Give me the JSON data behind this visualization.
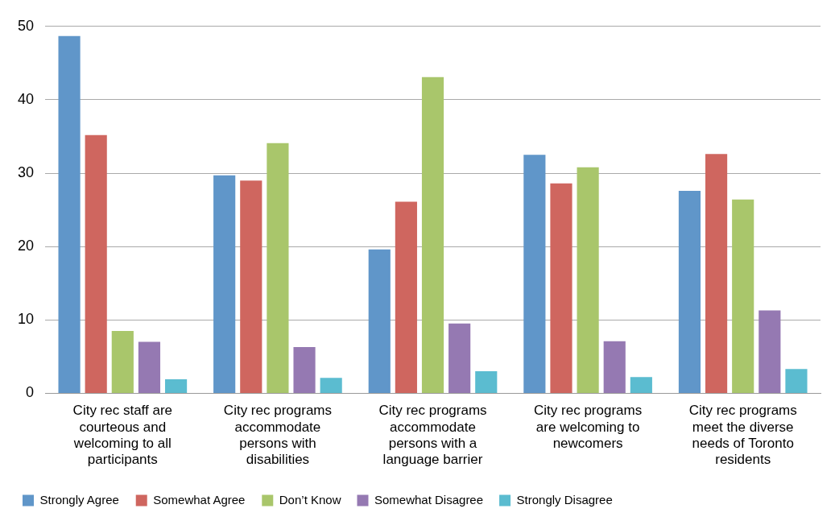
{
  "chart_data": {
    "type": "bar",
    "categories": [
      "City rec staff are courteous and welcoming to all participants",
      "City rec programs accommodate persons with disabilities",
      "City rec programs accommodate persons with a language barrier",
      "City rec programs are welcoming to newcomers",
      "City rec programs meet the diverse needs of Toronto residents"
    ],
    "series": [
      {
        "name": "Strongly Agree",
        "color": "#6096c9",
        "values": [
          48.7,
          29.7,
          19.6,
          32.5,
          27.6
        ]
      },
      {
        "name": "Somewhat Agree",
        "color": "#cf665f",
        "values": [
          35.2,
          29.0,
          26.1,
          28.6,
          32.6
        ]
      },
      {
        "name": "Don’t Know",
        "color": "#a9c66b",
        "values": [
          8.5,
          34.1,
          43.1,
          30.8,
          26.4
        ]
      },
      {
        "name": "Somewhat Disagree",
        "color": "#9579b2",
        "values": [
          7.0,
          6.3,
          9.5,
          7.1,
          11.3
        ]
      },
      {
        "name": "Strongly Disagree",
        "color": "#5bbcd0",
        "values": [
          1.9,
          2.1,
          3.0,
          2.2,
          3.3
        ]
      }
    ],
    "ylim": [
      0,
      50
    ],
    "yticks": [
      0,
      10,
      20,
      30,
      40,
      50
    ],
    "grid": "y",
    "legend": "bottom left"
  }
}
